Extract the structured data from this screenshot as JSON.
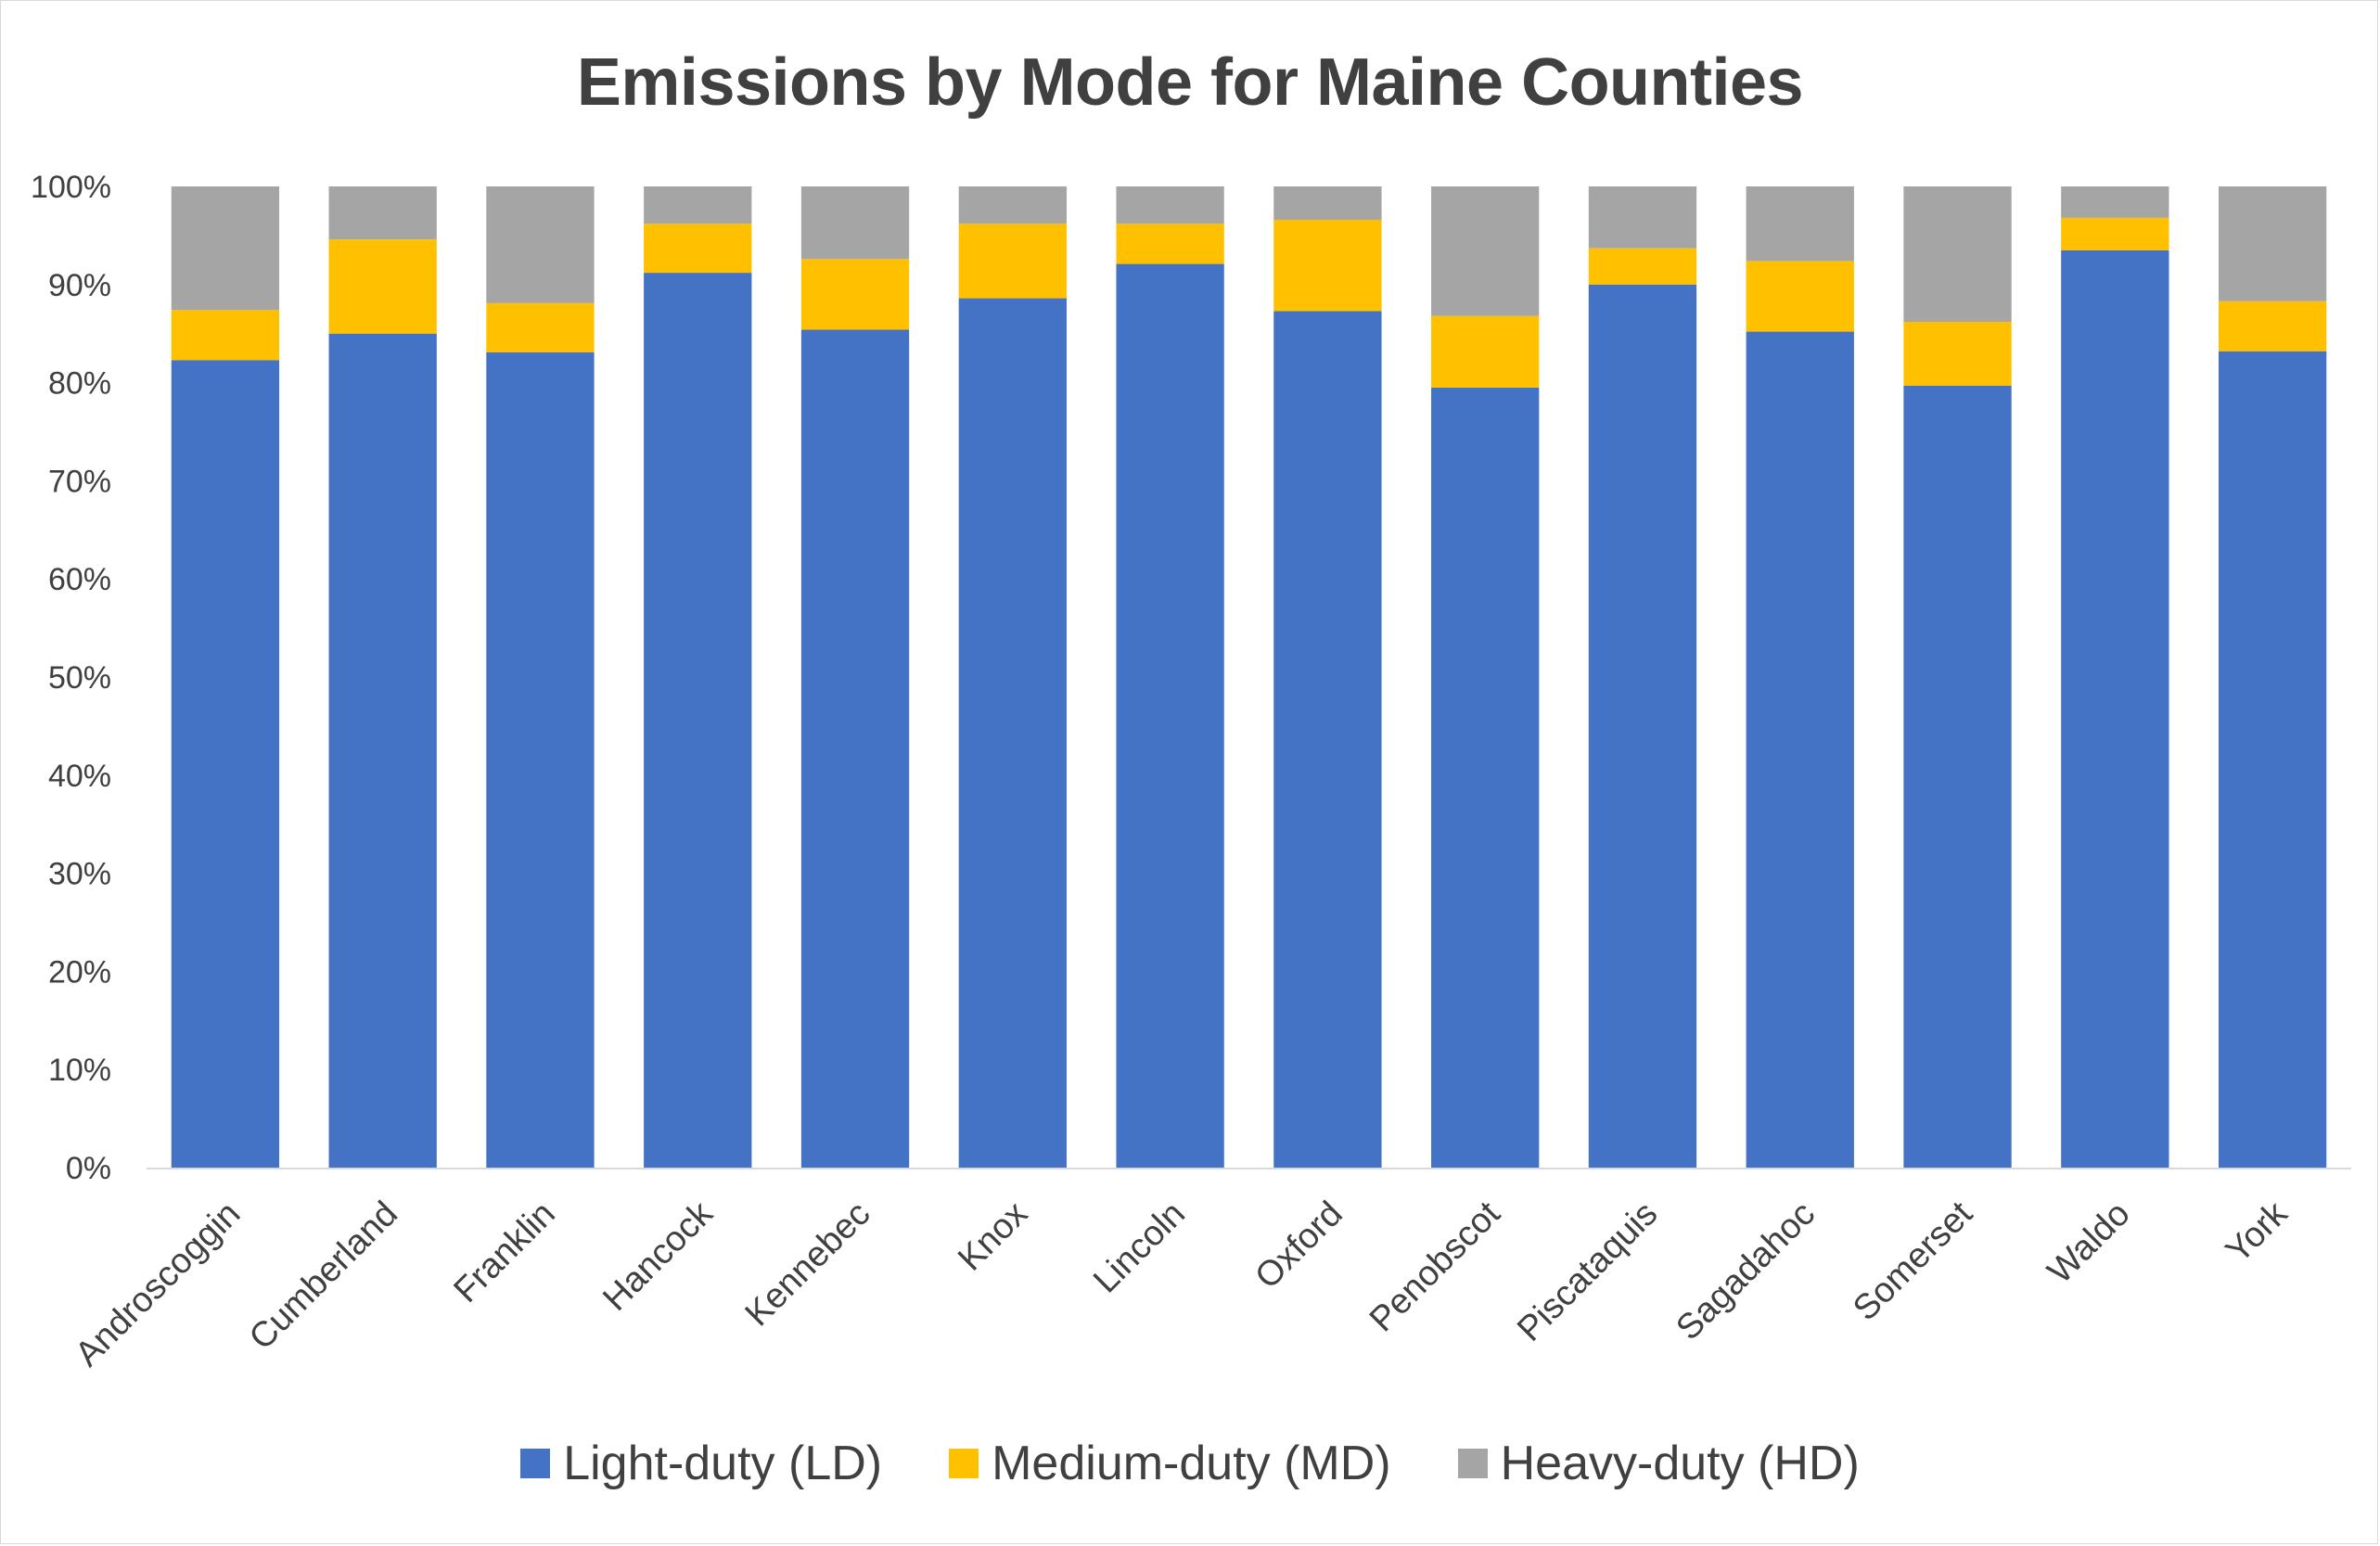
{
  "chart_data": {
    "type": "bar",
    "stacked": true,
    "title": "Emissions by Mode for Maine Counties",
    "xlabel": "",
    "ylabel": "",
    "ylim": [
      0,
      100
    ],
    "yticks": [
      "0%",
      "10%",
      "20%",
      "30%",
      "40%",
      "50%",
      "60%",
      "70%",
      "80%",
      "90%",
      "100%"
    ],
    "grid": false,
    "legend_position": "bottom",
    "categories": [
      "Androscoggin",
      "Cumberland",
      "Franklin",
      "Hancock",
      "Kennebec",
      "Knox",
      "Lincoln",
      "Oxford",
      "Penobscot",
      "Piscataquis",
      "Sagadahoc",
      "Somerset",
      "Waldo",
      "York"
    ],
    "series": [
      {
        "name": "Light-duty (LD)",
        "color": "#4472C4",
        "values": [
          82.3,
          85.0,
          83.1,
          91.2,
          85.4,
          88.6,
          92.1,
          87.3,
          79.5,
          90.0,
          85.2,
          79.7,
          93.5,
          83.2
        ]
      },
      {
        "name": "Medium-duty (MD)",
        "color": "#FFC000",
        "values": [
          5.1,
          9.6,
          5.0,
          5.0,
          7.2,
          7.6,
          4.1,
          9.3,
          7.3,
          3.7,
          7.2,
          6.5,
          3.3,
          5.1
        ]
      },
      {
        "name": "Heavy-duty (HD)",
        "color": "#A5A5A5",
        "values": [
          12.6,
          5.4,
          11.9,
          3.8,
          7.4,
          3.8,
          3.8,
          3.4,
          13.2,
          6.3,
          7.6,
          13.8,
          3.2,
          11.7
        ]
      }
    ]
  }
}
